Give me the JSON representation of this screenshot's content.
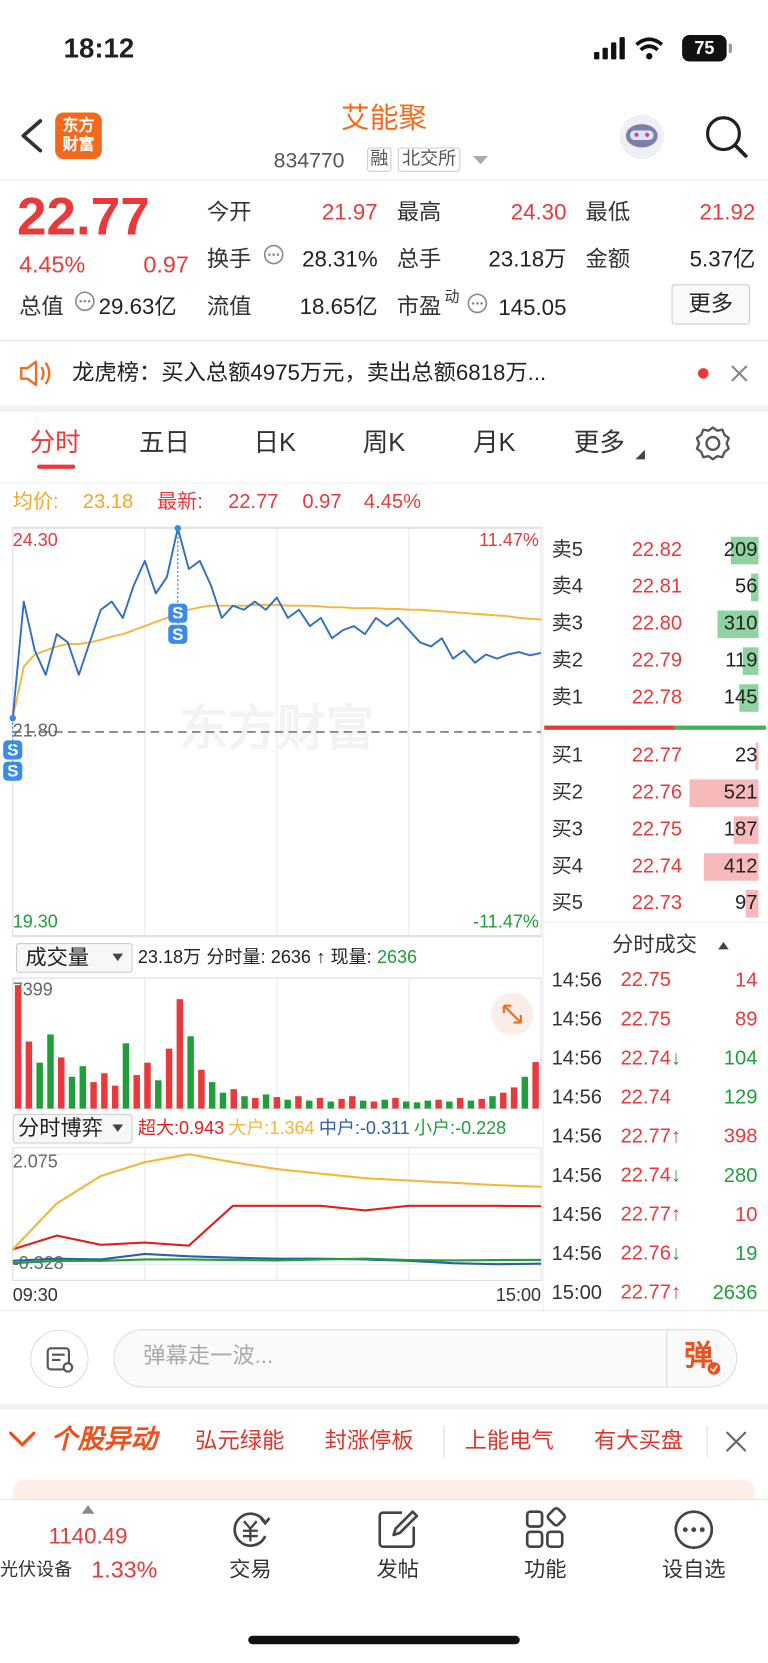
{
  "status_bar": {
    "time": "18:12",
    "battery": "75"
  },
  "header": {
    "logo": "东方财富",
    "title": "艾能聚",
    "code": "834770",
    "tags": [
      "融",
      "北交所"
    ]
  },
  "quote": {
    "price": "22.77",
    "change_pct": "4.45%",
    "change": "0.97",
    "fields": [
      {
        "label": "今开",
        "value": "21.97"
      },
      {
        "label": "最高",
        "value": "24.30"
      },
      {
        "label": "最低",
        "value": "21.92"
      },
      {
        "label": "换手",
        "value": "28.31%"
      },
      {
        "label": "总手",
        "value": "23.18万"
      },
      {
        "label": "金额",
        "value": "5.37亿"
      },
      {
        "label": "总值",
        "value": "29.63亿"
      },
      {
        "label": "流值",
        "value": "18.65亿"
      },
      {
        "label": "市盈",
        "sup": "动",
        "value": "145.05"
      }
    ],
    "more_button": "更多"
  },
  "notice": "龙虎榜：买入总额4975万元，卖出总额6818万...",
  "tabs": [
    "分时",
    "五日",
    "日K",
    "周K",
    "月K",
    "更多"
  ],
  "summary": {
    "avg_label": "均价:",
    "avg": "23.18",
    "latest_label": "最新:",
    "latest": "22.77",
    "change": "0.97",
    "change_pct": "4.45%"
  },
  "chart_data": [
    {
      "type": "line",
      "watermark": "东方财富",
      "ylim": [
        19.3,
        24.3
      ],
      "yticks": [
        {
          "value": 24.3,
          "label": "24.30",
          "color": "#e83a3a"
        },
        {
          "value": 21.8,
          "label": "21.80",
          "color": "#666666"
        },
        {
          "value": 19.3,
          "label": "19.30",
          "color": "#1f9e3a"
        }
      ],
      "pct_labels": [
        {
          "label": "11.47%",
          "color": "#e83a3a"
        },
        {
          "label": "-11.47%",
          "color": "#1f9e3a"
        }
      ],
      "series": [
        {
          "color": "#2f6fc4",
          "values": [
            21.97,
            23.4,
            22.8,
            22.5,
            23.0,
            22.9,
            22.5,
            22.9,
            23.3,
            23.4,
            23.2,
            23.6,
            23.9,
            23.5,
            23.7,
            24.3,
            23.8,
            23.9,
            23.6,
            23.2,
            23.35,
            23.3,
            23.4,
            23.3,
            23.45,
            23.2,
            23.3,
            23.1,
            23.2,
            22.95,
            23.05,
            23.1,
            23.0,
            23.2,
            23.1,
            23.2,
            23.05,
            22.9,
            22.85,
            22.95,
            22.7,
            22.8,
            22.65,
            22.75,
            22.7,
            22.75,
            22.78,
            22.74,
            22.77
          ]
        },
        {
          "color": "#f5b63c",
          "values": [
            21.97,
            22.6,
            22.75,
            22.8,
            22.85,
            22.88,
            22.88,
            22.9,
            22.93,
            22.97,
            23.0,
            23.05,
            23.1,
            23.15,
            23.2,
            23.28,
            23.3,
            23.33,
            23.35,
            23.35,
            23.35,
            23.35,
            23.36,
            23.36,
            23.36,
            23.35,
            23.35,
            23.35,
            23.34,
            23.33,
            23.33,
            23.32,
            23.32,
            23.32,
            23.31,
            23.31,
            23.3,
            23.3,
            23.29,
            23.28,
            23.27,
            23.26,
            23.25,
            23.24,
            23.23,
            23.22,
            23.2,
            23.19,
            23.18
          ]
        }
      ],
      "markers": [
        {
          "index": 0,
          "label": "S"
        },
        {
          "index": 0,
          "label": "S"
        },
        {
          "index": 15,
          "label": "S"
        },
        {
          "index": 15,
          "label": "S"
        }
      ],
      "marker_color": "#3d8be8"
    },
    {
      "type": "bar",
      "title": "成交量",
      "info": [
        {
          "text": "23.18万",
          "color": "#222222"
        },
        {
          "text": "分时量:",
          "color": "#222222"
        },
        {
          "text": "2636",
          "color": "#222222"
        },
        {
          "text": "↑",
          "color": "#222222"
        },
        {
          "text": "现量:",
          "color": "#222222"
        },
        {
          "text": "2636",
          "color": "#1f9e3a"
        }
      ],
      "ylim": [
        0,
        7399
      ],
      "yticks": [
        7399
      ],
      "up_color": "#e83a3a",
      "down_color": "#1f9e3a",
      "values": [
        7000,
        3800,
        2600,
        4200,
        2900,
        1800,
        2400,
        1500,
        2000,
        1300,
        3700,
        1900,
        2600,
        1600,
        3400,
        6200,
        4100,
        2200,
        1500,
        900,
        1100,
        700,
        600,
        800,
        650,
        500,
        700,
        450,
        600,
        400,
        550,
        700,
        450,
        400,
        500,
        600,
        400,
        350,
        450,
        500,
        400,
        600,
        450,
        550,
        700,
        900,
        1200,
        1800,
        2636
      ]
    },
    {
      "type": "line",
      "title": "分时博弈",
      "ylim": [
        -0.328,
        2.075
      ],
      "yticks": [
        2.075,
        -0.328
      ],
      "x_labels": [
        "09:30",
        "15:00"
      ],
      "series": [
        {
          "name": "超大:",
          "color": "#e02020",
          "values": [
            0,
            0.3,
            0.1,
            0.15,
            0.08,
            0.95,
            0.95,
            0.95,
            0.85,
            0.95,
            0.95,
            0.95,
            0.943
          ]
        },
        {
          "name": "大户:",
          "color": "#f5b63c",
          "values": [
            0,
            1.0,
            1.6,
            1.9,
            2.075,
            1.9,
            1.75,
            1.65,
            1.55,
            1.5,
            1.45,
            1.4,
            1.364
          ]
        },
        {
          "name": "中户:",
          "color": "#2f5fa8",
          "values": [
            -0.25,
            -0.2,
            -0.22,
            -0.1,
            -0.15,
            -0.18,
            -0.2,
            -0.2,
            -0.22,
            -0.25,
            -0.3,
            -0.32,
            -0.311
          ]
        },
        {
          "name": "小户:",
          "color": "#1f9e3a",
          "values": [
            -0.3,
            -0.25,
            -0.25,
            -0.22,
            -0.22,
            -0.23,
            -0.24,
            -0.22,
            -0.2,
            -0.23,
            -0.24,
            -0.23,
            -0.228
          ]
        }
      ]
    }
  ],
  "order_book": {
    "ask_bar_color": "#8fd4a0",
    "bid_bar_color": "#f7b9b9",
    "asks": [
      {
        "label": "卖5",
        "price": "22.82",
        "volume": 209
      },
      {
        "label": "卖4",
        "price": "22.81",
        "volume": 56
      },
      {
        "label": "卖3",
        "price": "22.80",
        "volume": 310
      },
      {
        "label": "卖2",
        "price": "22.79",
        "volume": 119
      },
      {
        "label": "卖1",
        "price": "22.78",
        "volume": 145
      }
    ],
    "bids": [
      {
        "label": "买1",
        "price": "22.77",
        "volume": 23
      },
      {
        "label": "买2",
        "price": "22.76",
        "volume": 521
      },
      {
        "label": "买3",
        "price": "22.75",
        "volume": 187
      },
      {
        "label": "买4",
        "price": "22.74",
        "volume": 412
      },
      {
        "label": "买5",
        "price": "22.73",
        "volume": 97
      }
    ]
  },
  "trades": {
    "title": "分时成交",
    "rows": [
      {
        "time": "14:56",
        "price": "22.75",
        "volume": "14",
        "color": "#e83a3a"
      },
      {
        "time": "14:56",
        "price": "22.75",
        "volume": "89",
        "color": "#e83a3a"
      },
      {
        "time": "14:56",
        "price": "22.74",
        "arrow": "↓",
        "arrow_color": "#1f9e3a",
        "volume": "104",
        "color": "#1f9e3a"
      },
      {
        "time": "14:56",
        "price": "22.74",
        "volume": "129",
        "color": "#1f9e3a"
      },
      {
        "time": "14:56",
        "price": "22.77",
        "arrow": "↑",
        "arrow_color": "#e83a3a",
        "volume": "398",
        "color": "#e83a3a"
      },
      {
        "time": "14:56",
        "price": "22.74",
        "arrow": "↓",
        "arrow_color": "#1f9e3a",
        "volume": "280",
        "color": "#1f9e3a"
      },
      {
        "time": "14:56",
        "price": "22.77",
        "arrow": "↑",
        "arrow_color": "#e83a3a",
        "volume": "10",
        "color": "#e83a3a"
      },
      {
        "time": "14:56",
        "price": "22.76",
        "arrow": "↓",
        "arrow_color": "#1f9e3a",
        "volume": "19",
        "color": "#1f9e3a"
      },
      {
        "time": "15:00",
        "price": "22.77",
        "arrow": "↑",
        "arrow_color": "#e83a3a",
        "volume": "2636",
        "color": "#1f9e3a"
      }
    ]
  },
  "comment": {
    "placeholder": "弹幕走一波...",
    "button": "弹"
  },
  "alerts": {
    "title": "个股异动",
    "items": [
      "弘元绿能",
      "封涨停板",
      "上能电气",
      "有大买盘"
    ]
  },
  "bottom_bar": {
    "index_value": "1140.49",
    "index_name": "光伏设备",
    "index_pct": "1.33%",
    "nav": [
      "交易",
      "发帖",
      "功能",
      "设自选"
    ]
  }
}
